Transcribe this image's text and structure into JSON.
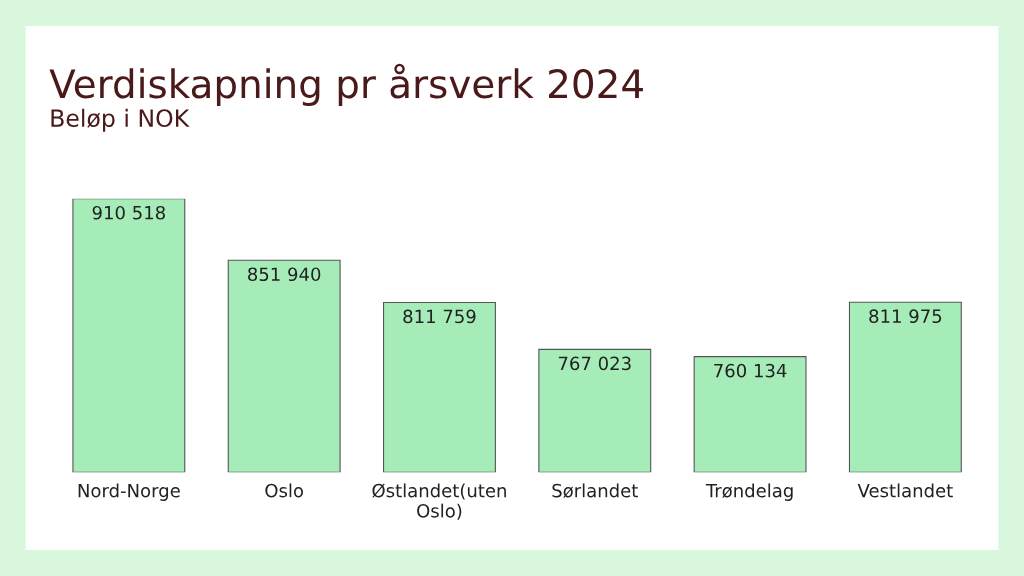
{
  "chart_data": {
    "type": "bar",
    "title": "Verdiskapning pr årsverk 2024",
    "subtitle": "Beløp i NOK",
    "categories": [
      "Nord-Norge",
      "Oslo",
      "Østlandet(uten\nOslo)",
      "Sørlandet",
      "Trøndelag",
      "Vestlandet"
    ],
    "values": [
      910518,
      851940,
      811759,
      767023,
      760134,
      811975
    ],
    "value_labels": [
      "910 518",
      "851 940",
      "811 759",
      "767 023",
      "760 134",
      "811 975"
    ],
    "color": "#a6ecb8",
    "ylim": [
      650000,
      910518
    ],
    "tick_labels": "x",
    "grid": false
  }
}
